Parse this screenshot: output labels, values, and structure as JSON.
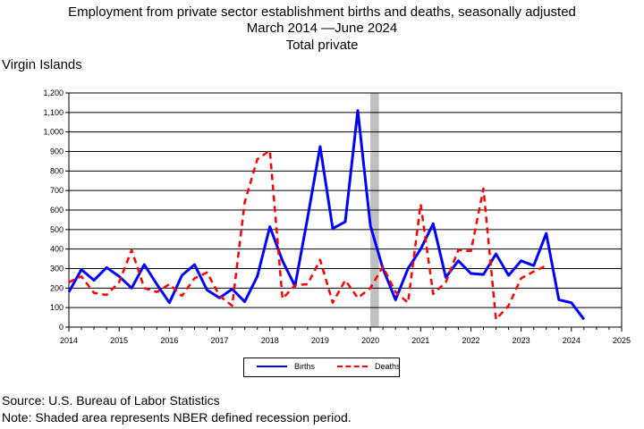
{
  "header": {
    "title_line1": "Employment from private sector establishment births and deaths, seasonally adjusted",
    "title_line2_start": "March 2014",
    "title_line2_end": "June 2024",
    "title_line3": "Total private"
  },
  "region_label": "Virgin Islands",
  "footer": {
    "source": "Source: U.S. Bureau of Labor Statistics",
    "note": "Note: Shaded area represents NBER defined recession period."
  },
  "colors": {
    "births": "#0000ff",
    "deaths": "#ff0000",
    "recession": "#c0c0c0",
    "grid": "#000000"
  },
  "chart_data": {
    "type": "line",
    "title": "Employment from private sector establishment births and deaths, seasonally adjusted",
    "xlabel": "",
    "ylabel": "",
    "xlim": [
      2014,
      2025
    ],
    "ylim": [
      0,
      1200
    ],
    "x_ticks": [
      "2014",
      "2015",
      "2016",
      "2017",
      "2018",
      "2019",
      "2020",
      "2021",
      "2022",
      "2023",
      "2024",
      "2025"
    ],
    "y_ticks": [
      "0",
      "100",
      "200",
      "300",
      "400",
      "500",
      "600",
      "700",
      "800",
      "900",
      "1,000",
      "1,100",
      "1,200"
    ],
    "grid": "horizontal",
    "legend_position": "bottom-center",
    "recession_shading": [
      2020.0,
      2020.17
    ],
    "series": [
      {
        "name": "Births",
        "style": "solid",
        "x": [
          2014.0,
          2014.25,
          2014.5,
          2014.75,
          2015.0,
          2015.25,
          2015.5,
          2015.75,
          2016.0,
          2016.25,
          2016.5,
          2016.75,
          2017.0,
          2017.25,
          2017.5,
          2017.75,
          2018.0,
          2018.25,
          2018.5,
          2018.75,
          2019.0,
          2019.25,
          2019.5,
          2019.75,
          2020.0,
          2020.25,
          2020.5,
          2020.75,
          2021.0,
          2021.25,
          2021.5,
          2021.75,
          2022.0,
          2022.25,
          2022.5,
          2022.75,
          2023.0,
          2023.25,
          2023.5,
          2023.75,
          2024.0,
          2024.25
        ],
        "values": [
          180,
          295,
          240,
          305,
          260,
          200,
          320,
          220,
          125,
          265,
          320,
          190,
          150,
          195,
          130,
          260,
          515,
          340,
          210,
          560,
          925,
          505,
          540,
          1110,
          520,
          300,
          140,
          300,
          400,
          530,
          255,
          340,
          275,
          270,
          375,
          265,
          340,
          315,
          480,
          140,
          125,
          40
        ]
      },
      {
        "name": "Deaths",
        "style": "dashed",
        "x": [
          2014.0,
          2014.25,
          2014.5,
          2014.75,
          2015.0,
          2015.25,
          2015.5,
          2015.75,
          2016.0,
          2016.25,
          2016.5,
          2016.75,
          2017.0,
          2017.25,
          2017.5,
          2017.75,
          2018.0,
          2018.25,
          2018.5,
          2018.75,
          2019.0,
          2019.25,
          2019.5,
          2019.75,
          2020.0,
          2020.25,
          2020.5,
          2020.75,
          2021.0,
          2021.25,
          2021.5,
          2021.75,
          2022.0,
          2022.25,
          2022.5,
          2022.75,
          2023.0,
          2023.25,
          2023.5
        ],
        "values": [
          230,
          260,
          175,
          165,
          230,
          395,
          200,
          180,
          220,
          160,
          250,
          280,
          160,
          110,
          640,
          860,
          905,
          145,
          215,
          220,
          345,
          125,
          240,
          150,
          200,
          310,
          180,
          125,
          630,
          170,
          230,
          395,
          390,
          710,
          40,
          110,
          250,
          285,
          315
        ]
      }
    ]
  }
}
